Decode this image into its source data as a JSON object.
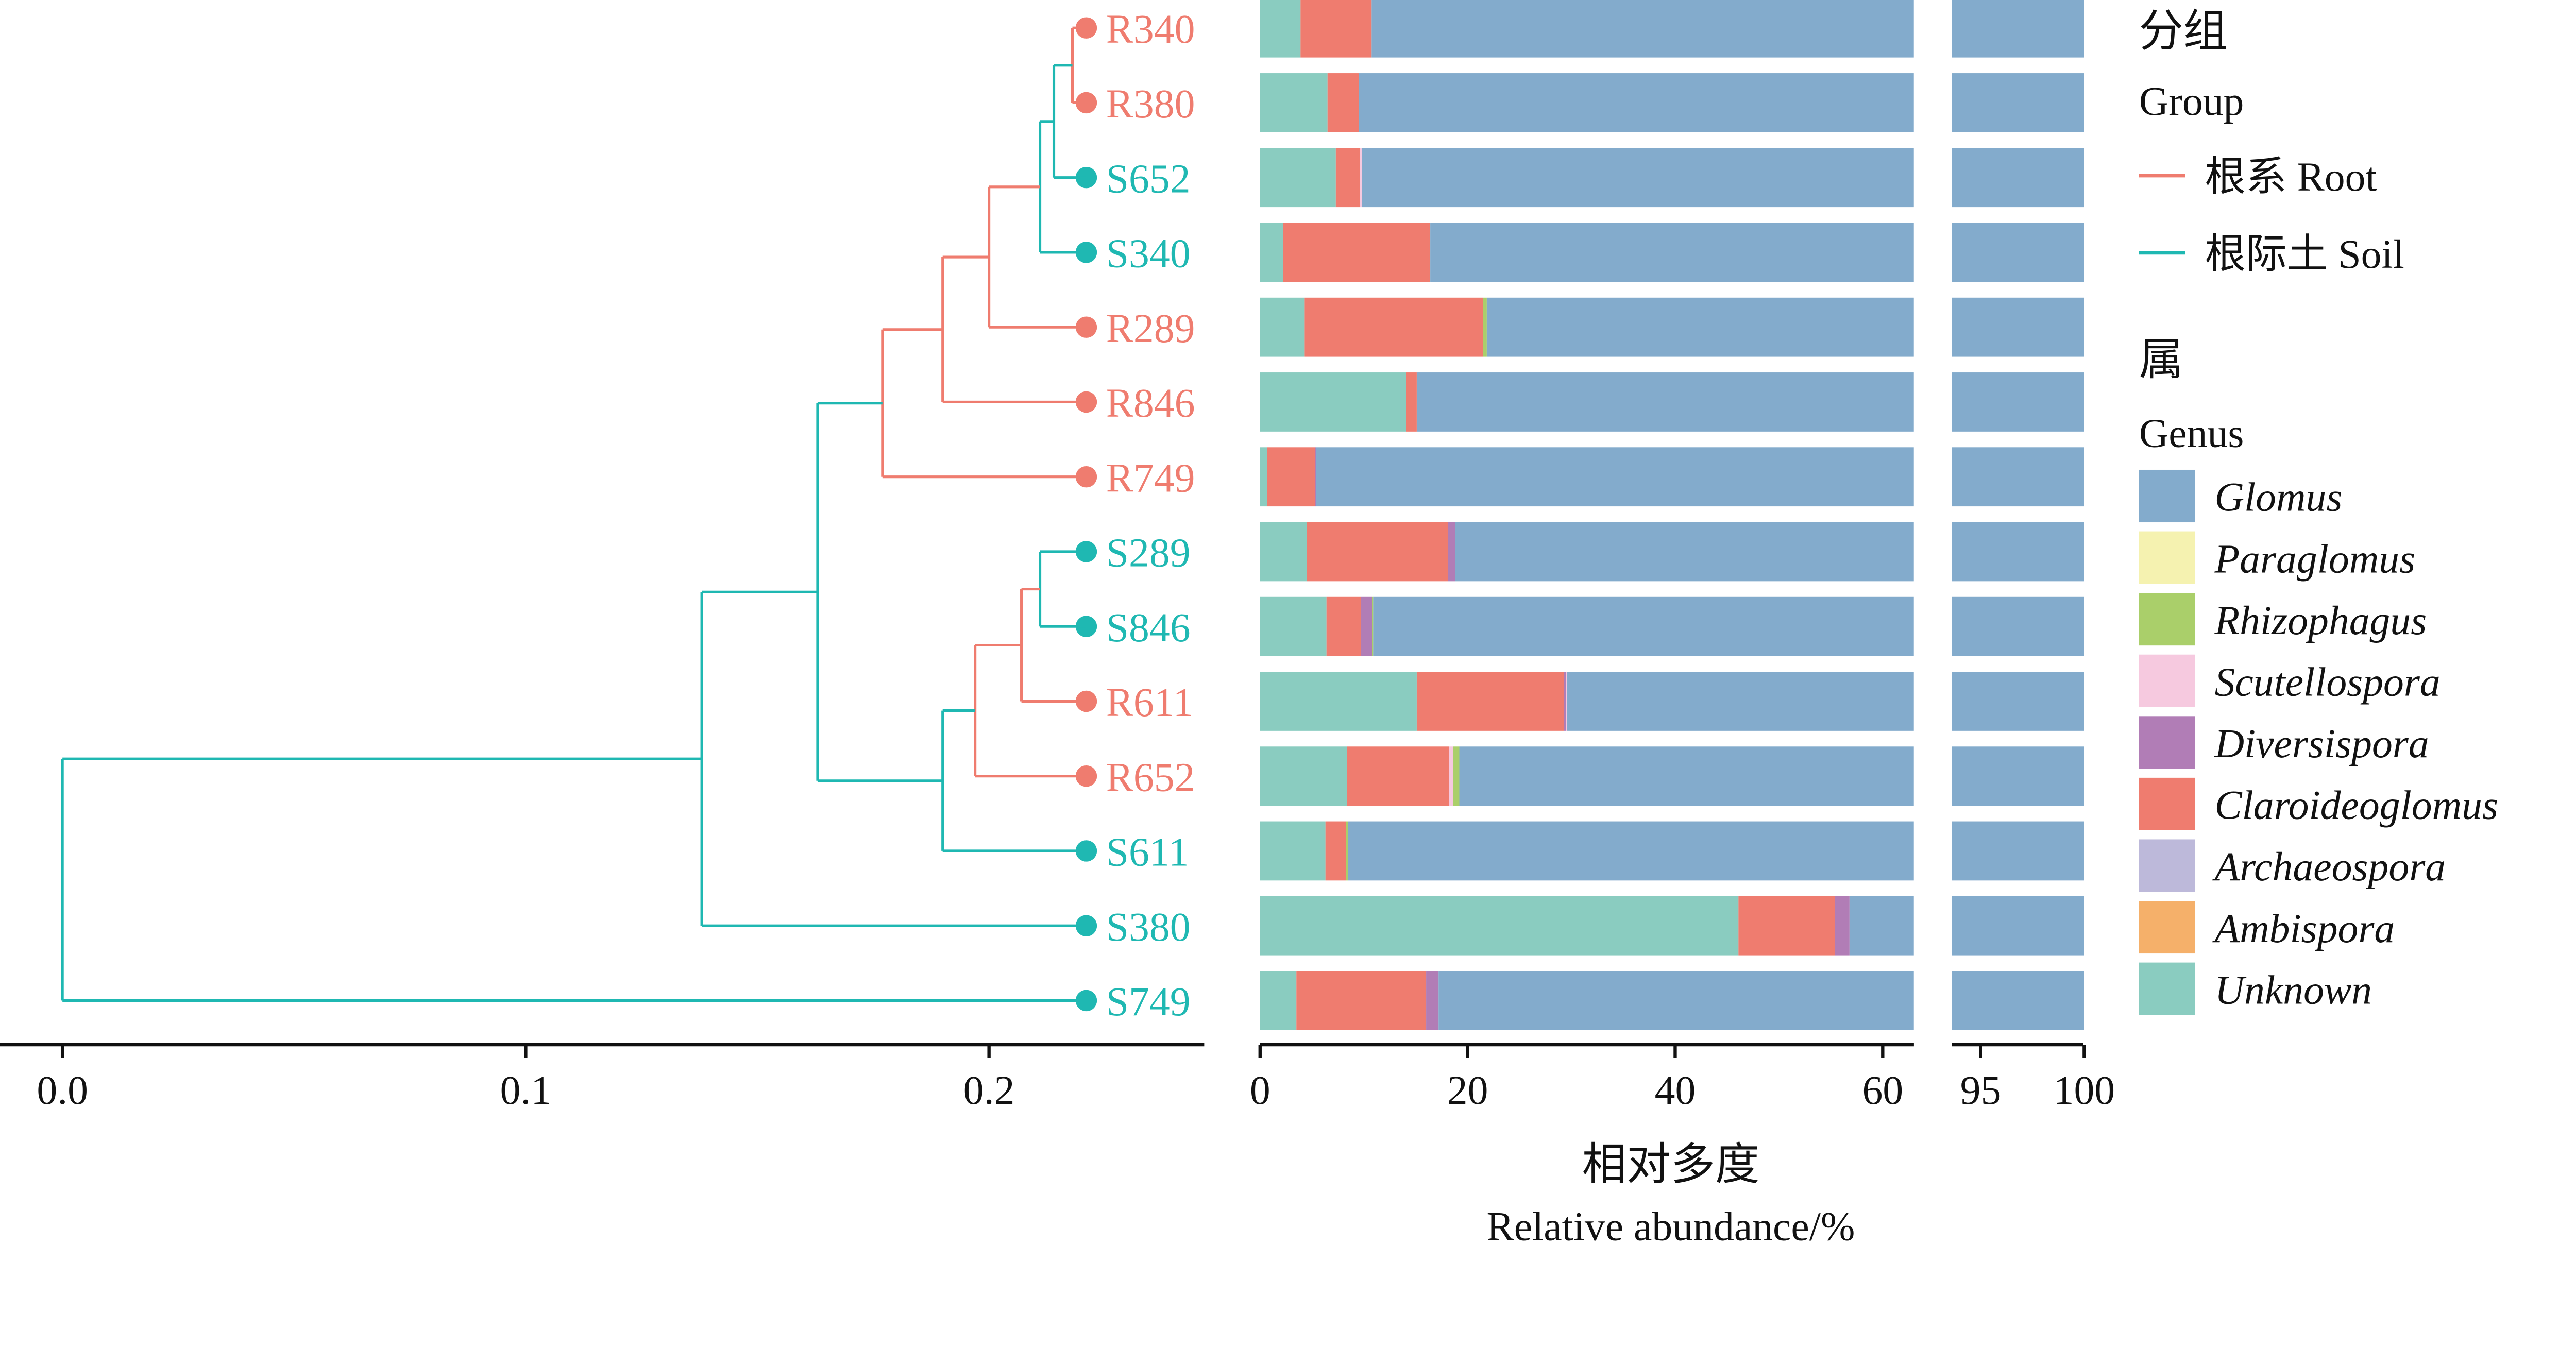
{
  "chart_data": {
    "type": "bar",
    "orientation": "horizontal",
    "stacked": true,
    "xlabel_cn": "相对多度",
    "xlabel": "Relative abundance/%",
    "x_axis_break": [
      [
        0,
        63
      ],
      [
        93.6,
        100
      ]
    ],
    "x_ticks": [
      0,
      20,
      40,
      60,
      95,
      100
    ],
    "genera": [
      "Glomus",
      "Paraglomus",
      "Rhizophagus",
      "Scutellospora",
      "Diversispora",
      "Claroideoglomus",
      "Archaeospora",
      "Ambispora",
      "Unknown"
    ],
    "genus_colors": {
      "Glomus": "#83ABCC",
      "Paraglomus": "#F5F2B0",
      "Rhizophagus": "#AACF6A",
      "Scutellospora": "#F6C9DF",
      "Diversispora": "#B17DB6",
      "Claroideoglomus": "#EF7C6F",
      "Archaeospora": "#BDB9DA",
      "Ambispora": "#F5B06A",
      "Unknown": "#8ACCC0"
    },
    "stack_order": [
      "Unknown",
      "Ambispora",
      "Archaeospora",
      "Claroideoglomus",
      "Diversispora",
      "Scutellospora",
      "Rhizophagus",
      "Paraglomus",
      "Glomus"
    ],
    "samples": [
      {
        "name": "R340",
        "group": "Root",
        "values": {
          "Unknown": 3.9,
          "Claroideoglomus": 6.85,
          "Glomus": 89.25
        }
      },
      {
        "name": "R380",
        "group": "Root",
        "values": {
          "Unknown": 6.5,
          "Claroideoglomus": 3.0,
          "Glomus": 90.5
        }
      },
      {
        "name": "S652",
        "group": "Soil",
        "values": {
          "Unknown": 7.3,
          "Claroideoglomus": 2.3,
          "Scutellospora": 0.2,
          "Glomus": 90.2
        }
      },
      {
        "name": "S340",
        "group": "Soil",
        "values": {
          "Unknown": 2.2,
          "Claroideoglomus": 14.2,
          "Glomus": 83.6
        }
      },
      {
        "name": "R289",
        "group": "Root",
        "values": {
          "Unknown": 4.3,
          "Claroideoglomus": 17.2,
          "Rhizophagus": 0.35,
          "Glomus": 78.15
        }
      },
      {
        "name": "R846",
        "group": "Root",
        "values": {
          "Unknown": 14.1,
          "Claroideoglomus": 1.0,
          "Glomus": 84.9
        }
      },
      {
        "name": "R749",
        "group": "Root",
        "values": {
          "Unknown": 0.7,
          "Claroideoglomus": 4.6,
          "Diversispora": 0.1,
          "Glomus": 94.6
        }
      },
      {
        "name": "S289",
        "group": "Soil",
        "values": {
          "Unknown": 4.5,
          "Claroideoglomus": 13.6,
          "Diversispora": 0.7,
          "Glomus": 81.2
        }
      },
      {
        "name": "S846",
        "group": "Soil",
        "values": {
          "Unknown": 6.4,
          "Claroideoglomus": 3.3,
          "Diversispora": 1.1,
          "Rhizophagus": 0.1,
          "Glomus": 89.1
        }
      },
      {
        "name": "R611",
        "group": "Root",
        "values": {
          "Unknown": 15.1,
          "Claroideoglomus": 14.2,
          "Diversispora": 0.2,
          "Scutellospora": 0.1,
          "Glomus": 70.4
        }
      },
      {
        "name": "R652",
        "group": "Root",
        "values": {
          "Unknown": 8.4,
          "Claroideoglomus": 9.8,
          "Scutellospora": 0.4,
          "Rhizophagus": 0.6,
          "Glomus": 80.8
        }
      },
      {
        "name": "S611",
        "group": "Soil",
        "values": {
          "Unknown": 6.3,
          "Claroideoglomus": 2.0,
          "Rhizophagus": 0.2,
          "Glomus": 91.5
        }
      },
      {
        "name": "S380",
        "group": "Soil",
        "values": {
          "Unknown": 46.1,
          "Claroideoglomus": 9.3,
          "Diversispora": 1.4,
          "Glomus": 43.2
        }
      },
      {
        "name": "S749",
        "group": "Soil",
        "values": {
          "Unknown": 3.5,
          "Claroideoglomus": 12.5,
          "Diversispora": 1.2,
          "Glomus": 82.8
        }
      }
    ],
    "dendrogram": {
      "x_ticks": [
        0.0,
        0.1,
        0.2
      ],
      "x_range": [
        -0.013,
        0.247
      ],
      "tree": {
        "h": 0.0,
        "c": [
          {
            "h": 0.138,
            "c": [
              {
                "h": 0.163,
                "c": [
                  {
                    "h": 0.177,
                    "c": [
                      {
                        "h": 0.19,
                        "c": [
                          {
                            "h": 0.2,
                            "c": [
                              {
                                "h": 0.211,
                                "c": [
                                  {
                                    "h": 0.214,
                                    "c": [
                                      {
                                        "h": 0.218,
                                        "c": [
                                          "R340",
                                          "R380"
                                        ],
                                        "g": "Root"
                                      },
                                      "S652"
                                    ],
                                    "g": "Soil"
                                  },
                                  "S340"
                                ],
                                "g": "Soil"
                              },
                              "R289"
                            ],
                            "g": "Root"
                          },
                          "R846"
                        ],
                        "g": "Root"
                      },
                      "R749"
                    ],
                    "g": "Root"
                  },
                  {
                    "h": 0.19,
                    "c": [
                      {
                        "h": 0.197,
                        "c": [
                          {
                            "h": 0.207,
                            "c": [
                              {
                                "h": 0.211,
                                "c": [
                                  "S289",
                                  "S846"
                                ],
                                "g": "Soil"
                              },
                              "R611"
                            ],
                            "g": "Root"
                          },
                          "R652"
                        ],
                        "g": "Root"
                      },
                      "S611"
                    ],
                    "g": "Soil"
                  }
                ],
                "g": "Soil"
              },
              "S380"
            ],
            "g": "Soil"
          },
          "S749"
        ],
        "g": "Soil"
      },
      "leaf_height": 0.221
    },
    "group_colors": {
      "Root": "#EF7C6F",
      "Soil": "#1FB8B2"
    }
  },
  "legend": {
    "group_title_cn": "分组",
    "group_title": "Group",
    "groups": [
      {
        "key": "Root",
        "label": "根系 Root"
      },
      {
        "key": "Soil",
        "label": "根际土 Soil"
      }
    ],
    "genus_title_cn": "属",
    "genus_title": "Genus"
  }
}
